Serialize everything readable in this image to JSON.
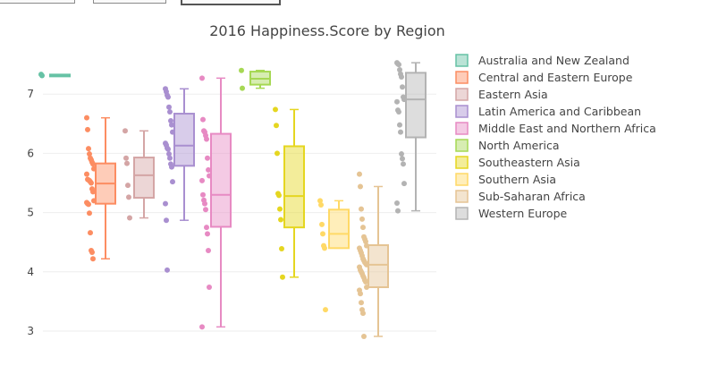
{
  "controls": [
    {
      "name": "dropdown-1"
    },
    {
      "name": "dropdown-2"
    },
    {
      "name": "dropdown-3"
    }
  ],
  "chart_data": {
    "type": "box",
    "title": "2016 Happiness.Score by Region",
    "xlabel": "",
    "ylabel": "",
    "ylim": [
      2.75,
      7.75
    ],
    "yticks": [
      3,
      4,
      5,
      6,
      7
    ],
    "grid": true,
    "legend_position": "right",
    "series": [
      {
        "name": "Australia and New Zealand",
        "color": "#66c2a5",
        "box": {
          "min": 7.31,
          "q1": 7.32,
          "median": 7.32,
          "q3": 7.33,
          "max": 7.33
        },
        "points": [
          7.334,
          7.313
        ]
      },
      {
        "name": "Central and Eastern Europe",
        "color": "#fc8d62",
        "box": {
          "min": 4.22,
          "q1": 5.15,
          "median": 5.49,
          "q3": 5.83,
          "max": 6.6
        },
        "points": [
          6.6,
          6.4,
          6.08,
          5.99,
          5.92,
          5.89,
          5.85,
          5.82,
          5.74,
          5.65,
          5.56,
          5.55,
          5.54,
          5.52,
          5.5,
          5.4,
          5.35,
          5.2,
          5.17,
          5.15,
          5.14,
          4.99,
          4.66,
          4.36,
          4.33,
          4.22
        ]
      },
      {
        "name": "Eastern Asia",
        "color": "#d4a5a5",
        "box": {
          "min": 4.91,
          "q1": 5.25,
          "median": 5.63,
          "q3": 5.93,
          "max": 6.38
        },
        "points": [
          6.38,
          5.92,
          5.83,
          5.46,
          5.26,
          4.91
        ]
      },
      {
        "name": "Latin America and Caribbean",
        "color": "#a98fd0",
        "box": {
          "min": 4.87,
          "q1": 5.79,
          "median": 6.13,
          "q3": 6.67,
          "max": 7.09
        },
        "points": [
          7.09,
          7.04,
          6.98,
          6.95,
          6.78,
          6.7,
          6.55,
          6.48,
          6.36,
          6.17,
          6.14,
          6.09,
          6.07,
          5.99,
          5.92,
          5.82,
          5.77,
          5.52,
          5.15,
          4.87,
          4.03
        ]
      },
      {
        "name": "Middle East and Northern Africa",
        "color": "#e78ac3",
        "box": {
          "min": 3.07,
          "q1": 4.76,
          "median": 5.3,
          "q3": 6.33,
          "max": 7.27
        },
        "points": [
          7.27,
          6.57,
          6.38,
          6.36,
          6.3,
          6.24,
          5.92,
          5.72,
          5.62,
          5.54,
          5.3,
          5.21,
          5.15,
          5.05,
          4.75,
          4.64,
          4.36,
          3.74,
          3.07
        ]
      },
      {
        "name": "North America",
        "color": "#a6d854",
        "box": {
          "min": 7.1,
          "q1": 7.16,
          "median": 7.26,
          "q3": 7.38,
          "max": 7.4
        },
        "points": [
          7.4,
          7.1
        ]
      },
      {
        "name": "Southeastern Asia",
        "color": "#e5d620",
        "box": {
          "min": 3.91,
          "q1": 4.75,
          "median": 5.28,
          "q3": 6.12,
          "max": 6.74
        },
        "points": [
          6.74,
          6.47,
          6.0,
          5.32,
          5.29,
          5.06,
          4.88,
          4.39,
          3.91
        ]
      },
      {
        "name": "Southern Asia",
        "color": "#ffd966",
        "box": {
          "min": 4.4,
          "q1": 4.4,
          "median": 4.64,
          "q3": 5.05,
          "max": 5.2
        },
        "points": [
          5.2,
          5.13,
          4.8,
          4.64,
          4.44,
          4.4,
          3.36
        ]
      },
      {
        "name": "Sub-Saharan Africa",
        "color": "#e5c494",
        "box": {
          "min": 2.91,
          "q1": 3.74,
          "median": 4.12,
          "q3": 4.45,
          "max": 5.44
        },
        "points": [
          5.65,
          5.44,
          5.06,
          4.89,
          4.75,
          4.59,
          4.55,
          4.51,
          4.44,
          4.4,
          4.36,
          4.32,
          4.27,
          4.22,
          4.19,
          4.16,
          4.14,
          4.12,
          4.08,
          4.03,
          4.0,
          3.97,
          3.93,
          3.9,
          3.86,
          3.83,
          3.74,
          3.69,
          3.63,
          3.48,
          3.36,
          3.3,
          2.91
        ]
      },
      {
        "name": "Western Europe",
        "color": "#b3b3b3",
        "box": {
          "min": 5.03,
          "q1": 6.27,
          "median": 6.91,
          "q3": 7.36,
          "max": 7.53
        },
        "points": [
          7.53,
          7.51,
          7.5,
          7.41,
          7.34,
          7.29,
          7.12,
          6.95,
          6.91,
          6.87,
          6.73,
          6.7,
          6.48,
          6.36,
          5.99,
          5.91,
          5.82,
          5.49,
          5.16,
          5.03
        ]
      }
    ]
  }
}
